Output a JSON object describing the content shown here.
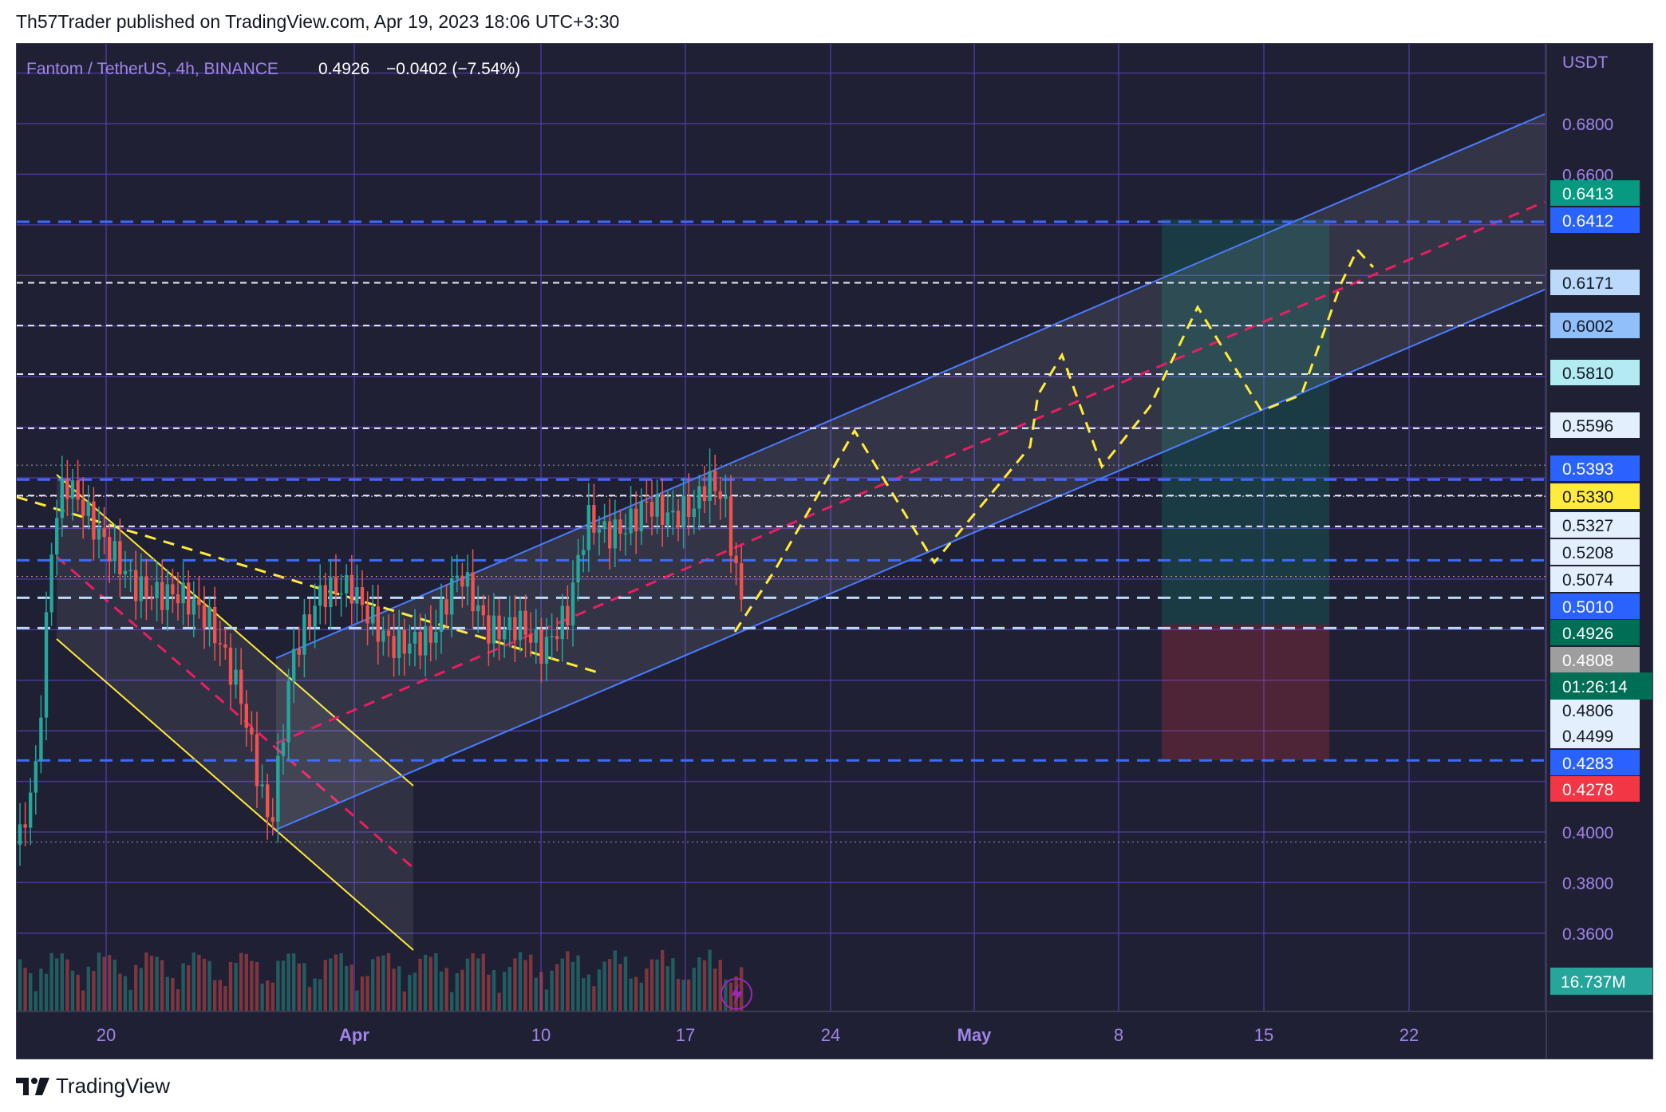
{
  "header": {
    "published_line": "Th57Trader published on TradingView.com, Apr 19, 2023 18:06 UTC+3:30"
  },
  "legend": {
    "symbol": "Fantom / TetherUS, 4h, BINANCE",
    "price": "0.4926",
    "change": "−0.0402 (−7.54%)"
  },
  "axis": {
    "currency": "USDT",
    "price_ticks": [
      "0.6800",
      "0.6600",
      "0.4000",
      "0.3800",
      "0.3600"
    ],
    "time_ticks": [
      "20",
      "Apr",
      "10",
      "17",
      "24",
      "May",
      "8",
      "15",
      "22"
    ]
  },
  "price_labels": [
    {
      "text": "0.6413",
      "color": "#089981"
    },
    {
      "text": "0.6412",
      "color": "#2962ff"
    },
    {
      "text": "0.6171",
      "color": "#bbd9fb"
    },
    {
      "text": "0.6002",
      "color": "#90bff9"
    },
    {
      "text": "0.5810",
      "color": "#b2ebf2"
    },
    {
      "text": "0.5596",
      "color": "#e3effd"
    },
    {
      "text": "0.5393",
      "color": "#2962ff"
    },
    {
      "text": "0.5330",
      "color": "#ffeb3b"
    },
    {
      "text": "0.5327",
      "color": "#e3effd"
    },
    {
      "text": "0.5208",
      "color": "#e3effd"
    },
    {
      "text": "0.5074",
      "color": "#e3effd"
    },
    {
      "text": "0.5010",
      "color": "#2962ff"
    },
    {
      "text": "0.4926",
      "color": "#006d55"
    },
    {
      "text": "0.4808",
      "color": "#9e9e9e"
    },
    {
      "text": "0.4806",
      "color": "#e3effd"
    },
    {
      "text": "0.4499",
      "color": "#e3effd"
    },
    {
      "text": "0.4283",
      "color": "#2962ff"
    },
    {
      "text": "0.4278",
      "color": "#f23645"
    }
  ],
  "countdown": "01:26:14",
  "volume_label": "16.737M",
  "footer": {
    "brand": "TradingView"
  },
  "colors": {
    "background": "#1f2033",
    "grid": "#5a3fb8",
    "channel": "#4a7cff",
    "midline": "#e91e63",
    "projection": "#ffeb3b",
    "bullish": "#26a69a",
    "bearish": "#ef5350",
    "target_zone": "#089981",
    "stop_zone": "#f23645"
  }
}
